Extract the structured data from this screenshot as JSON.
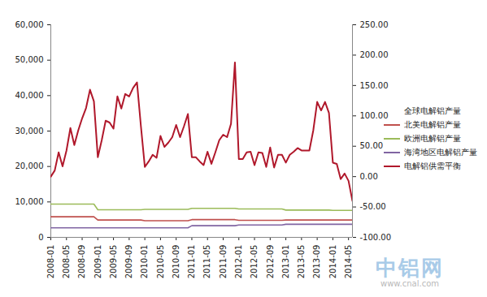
{
  "chart_data": {
    "type": "line",
    "categories": [
      "2008-01",
      null,
      null,
      null,
      "2008-05",
      null,
      null,
      null,
      "2008-09",
      null,
      null,
      null,
      "2009-01",
      null,
      null,
      null,
      "2009-05",
      null,
      null,
      null,
      "2009-09",
      null,
      null,
      null,
      "2010-01",
      null,
      null,
      null,
      "2010-05",
      null,
      null,
      null,
      "2010-09",
      null,
      null,
      null,
      "2011-01",
      null,
      null,
      null,
      "2011-05",
      null,
      null,
      null,
      "2011-09",
      null,
      null,
      null,
      "2012-01",
      null,
      null,
      null,
      "2012-05",
      null,
      null,
      null,
      "2012-09",
      null,
      null,
      null,
      "2013-01",
      null,
      null,
      null,
      "2013-05",
      null,
      null,
      null,
      "2013-09",
      null,
      null,
      null,
      "2014-01",
      null,
      null,
      null,
      "2014-05",
      null
    ],
    "series": [
      {
        "name": "全球电解铝产量",
        "color": "#ffffff",
        "values": [
          null,
          null,
          null,
          null,
          null,
          null,
          null,
          null,
          null,
          null,
          null,
          null,
          null,
          null,
          null,
          null,
          null,
          null,
          null,
          null,
          null,
          null,
          null,
          null,
          null,
          null,
          null,
          null,
          null,
          null,
          null,
          null,
          null,
          null,
          null,
          null,
          null,
          null,
          null,
          null,
          null,
          null,
          null,
          null,
          null,
          null,
          null,
          null,
          null,
          null,
          null,
          null,
          null,
          null,
          null,
          null,
          null,
          null,
          null,
          null,
          null,
          null,
          null,
          null,
          null,
          null,
          null,
          null,
          null,
          null,
          null,
          null,
          null,
          null,
          null,
          null,
          null,
          null
        ]
      },
      {
        "name": "北美电解铝产量",
        "color": "#c0504d",
        "values": [
          5800,
          5800,
          5800,
          5800,
          5800,
          5800,
          5800,
          5800,
          5800,
          5800,
          5800,
          5800,
          4900,
          4900,
          4900,
          4900,
          4900,
          4900,
          4900,
          4900,
          4900,
          4900,
          4900,
          4900,
          4700,
          4700,
          4700,
          4700,
          4700,
          4700,
          4700,
          4700,
          4700,
          4700,
          4700,
          4700,
          5000,
          5000,
          5000,
          5000,
          5000,
          5000,
          5000,
          5000,
          5000,
          5000,
          5000,
          5000,
          4800,
          4800,
          4800,
          4800,
          4800,
          4800,
          4800,
          4800,
          4800,
          4800,
          4800,
          4800,
          4900,
          4900,
          4900,
          4900,
          4900,
          4900,
          4900,
          4900,
          4900,
          4900,
          4900,
          4900,
          4900,
          4900,
          4900,
          4900,
          4900,
          4900
        ]
      },
      {
        "name": "欧洲电解铝产量",
        "color": "#9bbb59",
        "values": [
          9400,
          9400,
          9400,
          9400,
          9400,
          9400,
          9400,
          9400,
          9400,
          9400,
          9400,
          9400,
          7800,
          7800,
          7800,
          7800,
          7800,
          7800,
          7800,
          7800,
          7800,
          7800,
          7800,
          7800,
          7900,
          7900,
          7900,
          7900,
          7900,
          7900,
          7900,
          7900,
          7900,
          7900,
          7900,
          7900,
          8200,
          8200,
          8200,
          8200,
          8200,
          8200,
          8200,
          8200,
          8200,
          8200,
          8200,
          8200,
          8000,
          8000,
          8000,
          8000,
          8000,
          8000,
          8000,
          8000,
          8000,
          8000,
          8000,
          8000,
          7700,
          7700,
          7700,
          7700,
          7700,
          7700,
          7700,
          7700,
          7700,
          7700,
          7700,
          7700,
          7600,
          7600,
          7600,
          7600,
          7600,
          7600
        ]
      },
      {
        "name": "海湾地区电解铝产量",
        "color": "#8064a2",
        "values": [
          2700,
          2700,
          2700,
          2700,
          2700,
          2700,
          2700,
          2700,
          2700,
          2700,
          2700,
          2700,
          2700,
          2700,
          2700,
          2700,
          2700,
          2700,
          2700,
          2700,
          2700,
          2700,
          2700,
          2700,
          2700,
          2700,
          2700,
          2700,
          2700,
          2700,
          2700,
          2700,
          2700,
          2700,
          2700,
          2700,
          3300,
          3300,
          3300,
          3300,
          3300,
          3300,
          3300,
          3300,
          3300,
          3300,
          3300,
          3300,
          3500,
          3500,
          3500,
          3500,
          3500,
          3500,
          3500,
          3500,
          3500,
          3500,
          3500,
          3500,
          3700,
          3700,
          3700,
          3700,
          3700,
          3700,
          3700,
          3700,
          3700,
          3700,
          3700,
          3700,
          3700,
          3700,
          3700,
          3700,
          3700,
          3700
        ]
      },
      {
        "name": "电解铝供需平衡",
        "color": "#b0182b",
        "axis": "y2",
        "values": [
          0,
          10,
          40,
          17,
          43,
          80,
          52,
          76,
          96,
          113,
          143,
          124,
          32,
          60,
          92,
          89,
          79,
          132,
          112,
          136,
          132,
          146,
          155,
          83,
          16,
          25,
          36,
          31,
          67,
          49,
          56,
          65,
          85,
          65,
          83,
          103,
          32,
          32,
          25,
          19,
          41,
          21,
          40,
          60,
          69,
          65,
          87,
          188,
          29,
          29,
          40,
          41,
          19,
          40,
          39,
          16,
          48,
          15,
          36,
          36,
          23,
          36,
          41,
          47,
          43,
          43,
          43,
          76,
          123,
          109,
          123,
          105,
          23,
          21,
          -4,
          5,
          -7,
          -40
        ]
      }
    ],
    "ylim": [
      0,
      60000
    ],
    "yticks": [
      0,
      {
        "value": 10000,
        "label": "10,000"
      },
      {
        "value": 20000,
        "label": "20,000"
      },
      {
        "value": 30000,
        "label": "30,000"
      },
      {
        "value": 40000,
        "label": "40,000"
      },
      {
        "value": 50000,
        "label": "50,000"
      },
      {
        "value": 60000,
        "label": "60,000"
      }
    ],
    "y2lim": [
      -100,
      250
    ],
    "y2ticks": [
      {
        "value": -100,
        "label": "-100.00"
      },
      {
        "value": -50,
        "label": "-50.00"
      },
      {
        "value": 0,
        "label": "0.00"
      },
      {
        "value": 50,
        "label": "50.00"
      },
      {
        "value": 100,
        "label": "100.00"
      },
      {
        "value": 150,
        "label": "150.00"
      },
      {
        "value": 200,
        "label": "200.00"
      },
      {
        "value": 250,
        "label": "250.00"
      }
    ],
    "grid": false,
    "legend": "right",
    "annotations": [
      "中铝网",
      "www.cnal.com"
    ]
  }
}
